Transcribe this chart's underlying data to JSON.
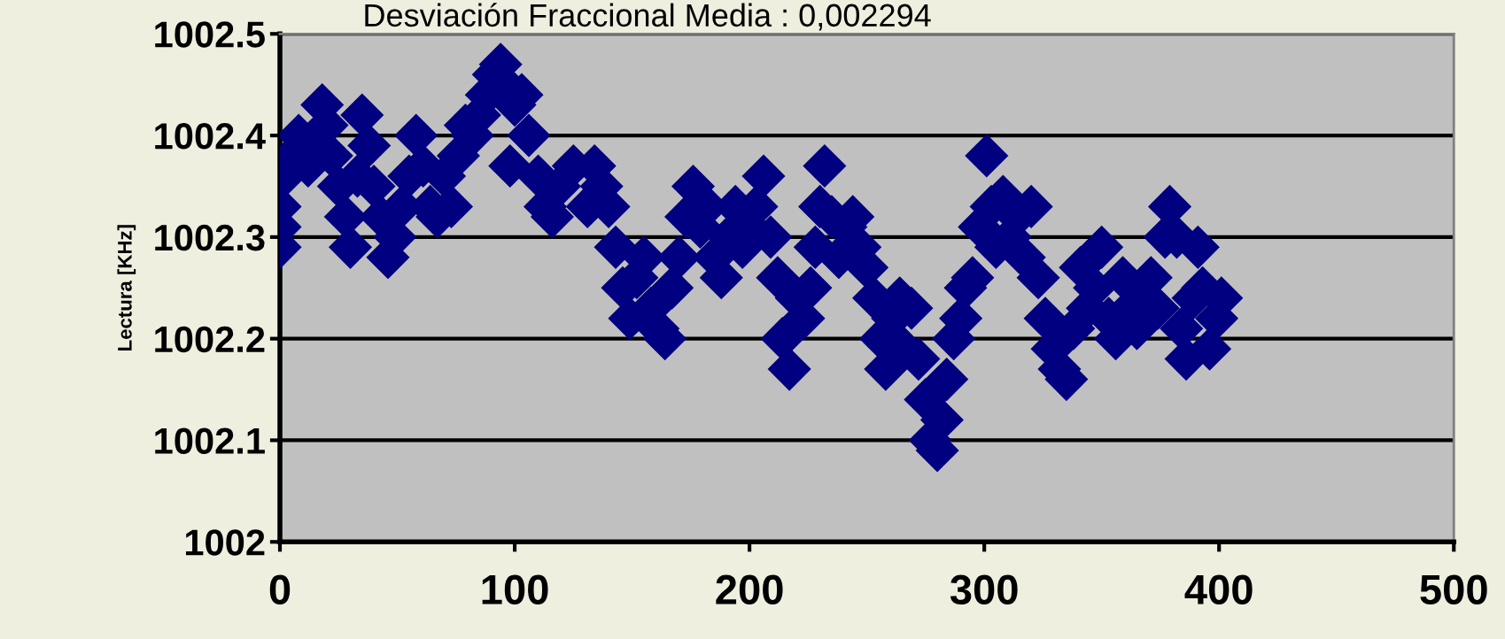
{
  "chart_data": {
    "type": "scatter",
    "title": "Desviación Fraccional Media : 0,002294",
    "ylabel": "Lectura [KHz]",
    "x": [
      0,
      0,
      0,
      2,
      5,
      8,
      12,
      15,
      18,
      20,
      22,
      25,
      28,
      30,
      33,
      35,
      38,
      40,
      43,
      46,
      49,
      52,
      55,
      58,
      61,
      64,
      67,
      70,
      73,
      76,
      79,
      82,
      85,
      88,
      91,
      94,
      96,
      98,
      100,
      103,
      106,
      110,
      113,
      116,
      119,
      125,
      131,
      134,
      137,
      140,
      143,
      146,
      149,
      152,
      155,
      158,
      161,
      164,
      167,
      170,
      173,
      176,
      179,
      182,
      185,
      188,
      191,
      194,
      197,
      200,
      203,
      206,
      209,
      212,
      214,
      217,
      220,
      223,
      226,
      228,
      230,
      232,
      235,
      238,
      241,
      244,
      247,
      250,
      253,
      256,
      258,
      261,
      264,
      266,
      269,
      272,
      275,
      277,
      280,
      282,
      284,
      287,
      290,
      292,
      295,
      298,
      301,
      303,
      305,
      308,
      311,
      314,
      317,
      320,
      323,
      326,
      329,
      332,
      335,
      338,
      341,
      344,
      347,
      350,
      353,
      356,
      359,
      362,
      365,
      368,
      371,
      374,
      377,
      379,
      382,
      384,
      386,
      389,
      391,
      393,
      396,
      399,
      401
    ],
    "series": [
      {
        "color": "#000080",
        "values": [
          1002.29,
          1002.31,
          1002.33,
          1002.36,
          1002.38,
          1002.4,
          1002.37,
          1002.39,
          1002.43,
          1002.41,
          1002.38,
          1002.35,
          1002.32,
          1002.29,
          1002.36,
          1002.42,
          1002.39,
          1002.35,
          1002.32,
          1002.28,
          1002.3,
          1002.33,
          1002.36,
          1002.4,
          1002.37,
          1002.33,
          1002.32,
          1002.36,
          1002.33,
          1002.38,
          1002.41,
          1002.4,
          1002.42,
          1002.44,
          1002.46,
          1002.47,
          1002.45,
          1002.37,
          1002.43,
          1002.44,
          1002.4,
          1002.36,
          1002.33,
          1002.32,
          1002.35,
          1002.37,
          1002.33,
          1002.37,
          1002.35,
          1002.33,
          1002.29,
          1002.25,
          1002.22,
          1002.26,
          1002.28,
          1002.23,
          1002.21,
          1002.2,
          1002.25,
          1002.28,
          1002.32,
          1002.35,
          1002.31,
          1002.33,
          1002.28,
          1002.26,
          1002.3,
          1002.33,
          1002.29,
          1002.31,
          1002.33,
          1002.36,
          1002.3,
          1002.26,
          1002.2,
          1002.17,
          1002.24,
          1002.22,
          1002.25,
          1002.29,
          1002.33,
          1002.37,
          1002.32,
          1002.28,
          1002.31,
          1002.32,
          1002.29,
          1002.27,
          1002.24,
          1002.2,
          1002.17,
          1002.22,
          1002.24,
          1002.19,
          1002.23,
          1002.18,
          1002.14,
          1002.1,
          1002.09,
          1002.12,
          1002.16,
          1002.2,
          1002.22,
          1002.25,
          1002.26,
          1002.31,
          1002.38,
          1002.33,
          1002.29,
          1002.34,
          1002.3,
          1002.32,
          1002.28,
          1002.33,
          1002.26,
          1002.22,
          1002.19,
          1002.17,
          1002.16,
          1002.21,
          1002.27,
          1002.23,
          1002.25,
          1002.29,
          1002.22,
          1002.2,
          1002.26,
          1002.23,
          1002.21,
          1002.24,
          1002.26,
          1002.23,
          1002.3,
          1002.33,
          1002.3,
          1002.21,
          1002.18,
          1002.24,
          1002.29,
          1002.25,
          1002.19,
          1002.22,
          1002.24
        ]
      }
    ],
    "xlim": [
      0,
      500
    ],
    "xticks": [
      0,
      100,
      200,
      300,
      400,
      500
    ],
    "ylim": [
      1002,
      1002.5
    ],
    "yticks": [
      1002,
      1002.1,
      1002.2,
      1002.3,
      1002.4,
      1002.5
    ],
    "grid": "y",
    "marker": "diamond",
    "legend": false
  }
}
